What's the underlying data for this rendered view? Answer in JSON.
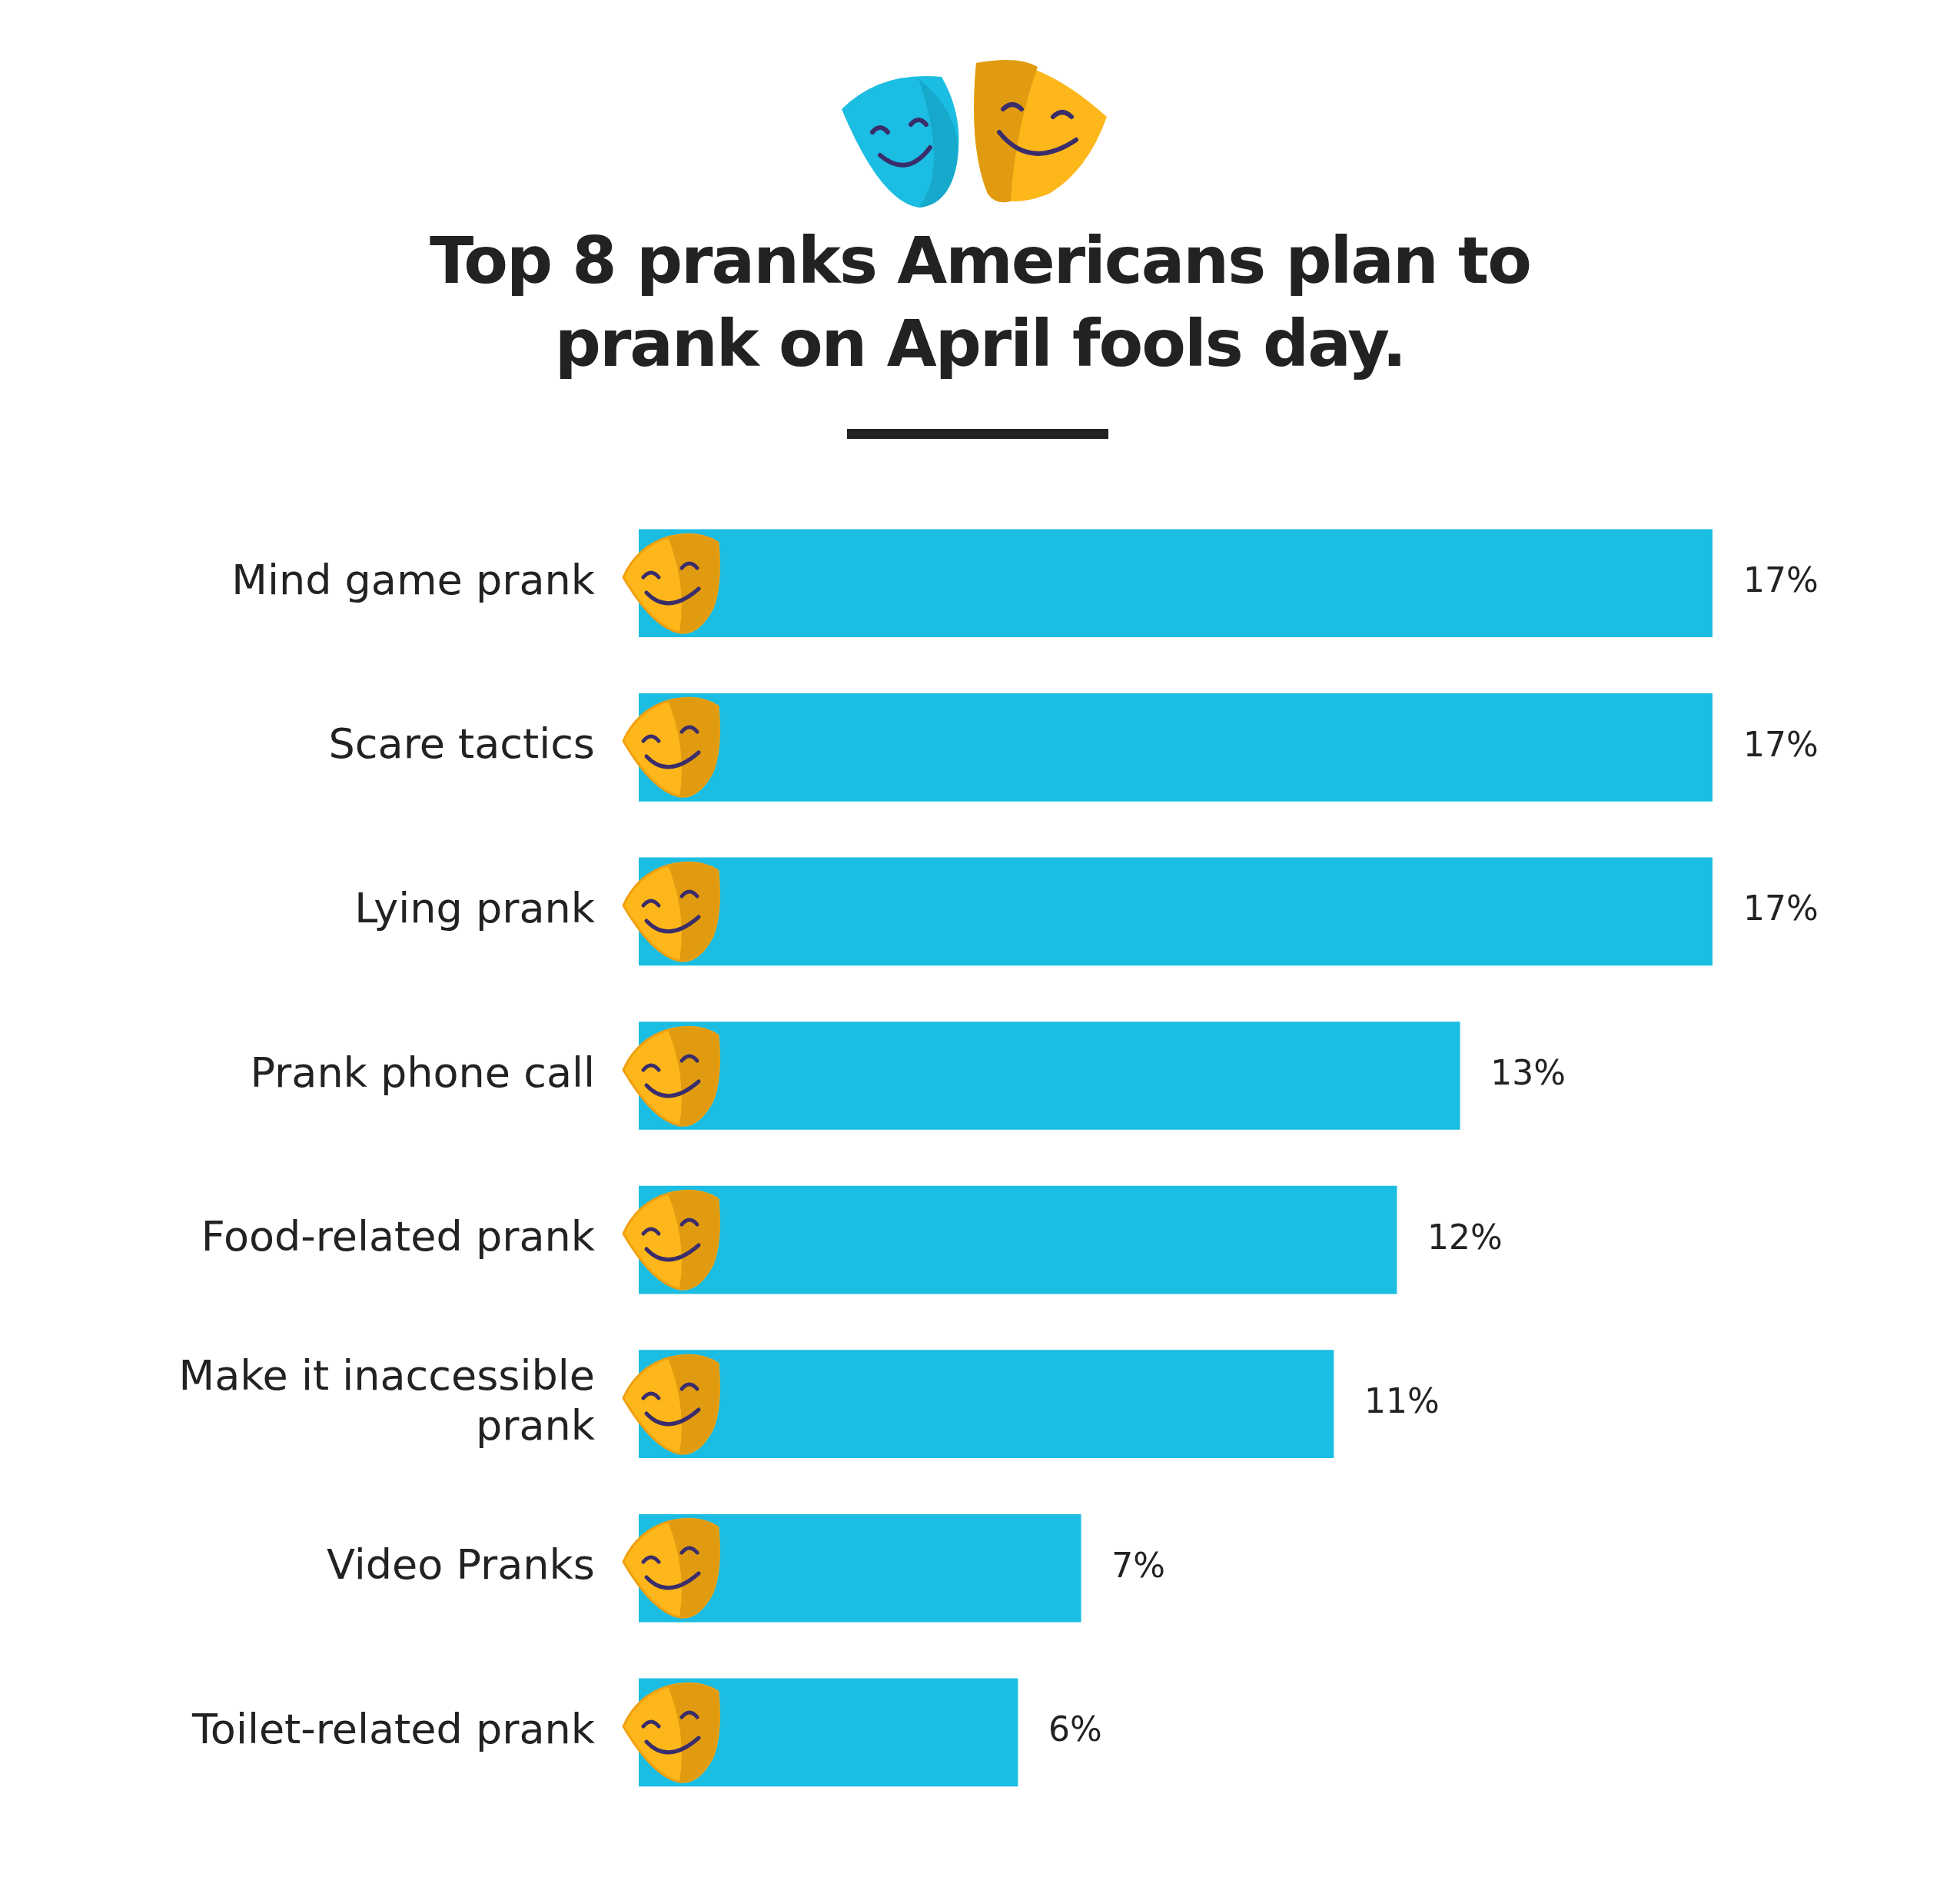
{
  "chart_data": {
    "type": "bar",
    "orientation": "horizontal",
    "title": "Top 8 pranks Americans plan to prank on April fools day.",
    "categories": [
      "Mind game prank",
      "Scare tactics",
      "Lying prank",
      "Prank phone call",
      "Food-related prank",
      "Make it inaccessible prank",
      "Video Pranks",
      "Toilet-related prank"
    ],
    "values": [
      17,
      17,
      17,
      13,
      12,
      11,
      7,
      6
    ],
    "value_labels": [
      "17%",
      "17%",
      "17%",
      "13%",
      "12%",
      "11%",
      "7%",
      "6%"
    ],
    "color": "#1bbde2",
    "tick_labels": "y"
  }
}
